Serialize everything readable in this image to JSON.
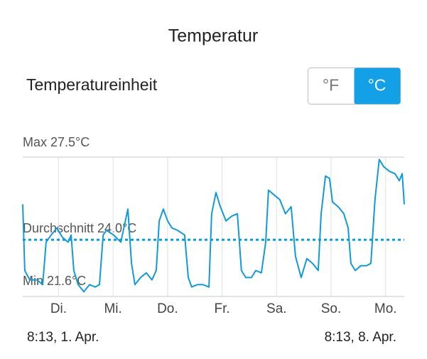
{
  "header": {
    "title": "Temperatur"
  },
  "unit_setting": {
    "label": "Temperatureinheit",
    "options": [
      "°F",
      "°C"
    ],
    "selected": 1
  },
  "chart_data": {
    "type": "line",
    "max_label": "Max 27.5°C",
    "average_label": "Durchschnitt 24.0°C",
    "min_label": "Min 21.6°C",
    "average": 24.0,
    "color": "#119ad8",
    "ylim": [
      21.6,
      27.5
    ],
    "xlim": [
      0,
      168
    ],
    "xticks": [
      {
        "value": 15.78,
        "label": "Di."
      },
      {
        "value": 39.78,
        "label": "Mi."
      },
      {
        "value": 63.78,
        "label": "Do."
      },
      {
        "value": 87.78,
        "label": "Fr."
      },
      {
        "value": 111.78,
        "label": "Sa."
      },
      {
        "value": 135.78,
        "label": "So."
      },
      {
        "value": 159.78,
        "label": "Mo."
      }
    ],
    "start_label": "8:13,  1. Apr.",
    "end_label": "8:13,  8. Apr.",
    "x": [
      0,
      0.9,
      3.1,
      6.3,
      8.8,
      10.3,
      12.5,
      15.0,
      17.5,
      20.0,
      21.3,
      22.5,
      24.4,
      26.9,
      29.4,
      31.9,
      33.8,
      35.4,
      36.9,
      40.0,
      43.2,
      46.3,
      47.9,
      49.4,
      51.9,
      54.4,
      56.9,
      58.8,
      60.1,
      61.9,
      63.8,
      65.7,
      68.2,
      71.3,
      72.9,
      74.4,
      76.9,
      79.4,
      82.0,
      83.2,
      85.1,
      87.0,
      89.5,
      92.0,
      94.5,
      96.3,
      98.2,
      100.7,
      102.6,
      105.1,
      107.0,
      108.2,
      110.7,
      113.2,
      115.7,
      118.2,
      120.1,
      122.6,
      125.1,
      127.6,
      130.1,
      131.4,
      133.3,
      135.1,
      136.4,
      138.9,
      141.4,
      143.3,
      144.5,
      146.4,
      148.9,
      151.4,
      153.3,
      155.1,
      157.0,
      158.9,
      161.4,
      163.9,
      165.8,
      167.1,
      168.0
    ],
    "values": [
      25.5,
      22.7,
      22.3,
      22.3,
      22.1,
      23.9,
      24.2,
      24.5,
      24.1,
      23.9,
      24.2,
      22.7,
      22.1,
      21.8,
      22.1,
      22.0,
      22.1,
      24.2,
      24.4,
      24.2,
      23.9,
      25.3,
      23.0,
      22.1,
      22.4,
      22.6,
      22.3,
      22.7,
      24.8,
      25.3,
      24.8,
      24.5,
      24.4,
      24.2,
      22.4,
      22.0,
      22.1,
      22.1,
      22.0,
      25.1,
      26.0,
      25.4,
      24.8,
      25.0,
      25.1,
      22.7,
      22.4,
      22.4,
      22.7,
      22.6,
      23.9,
      26.1,
      25.9,
      25.7,
      25.1,
      25.4,
      23.3,
      22.4,
      23.2,
      23.0,
      22.7,
      25.1,
      26.7,
      26.6,
      25.6,
      25.4,
      25.1,
      24.5,
      23.0,
      22.7,
      22.9,
      22.9,
      23.0,
      25.7,
      27.4,
      27.1,
      26.9,
      26.8,
      26.5,
      26.8,
      25.5
    ]
  }
}
